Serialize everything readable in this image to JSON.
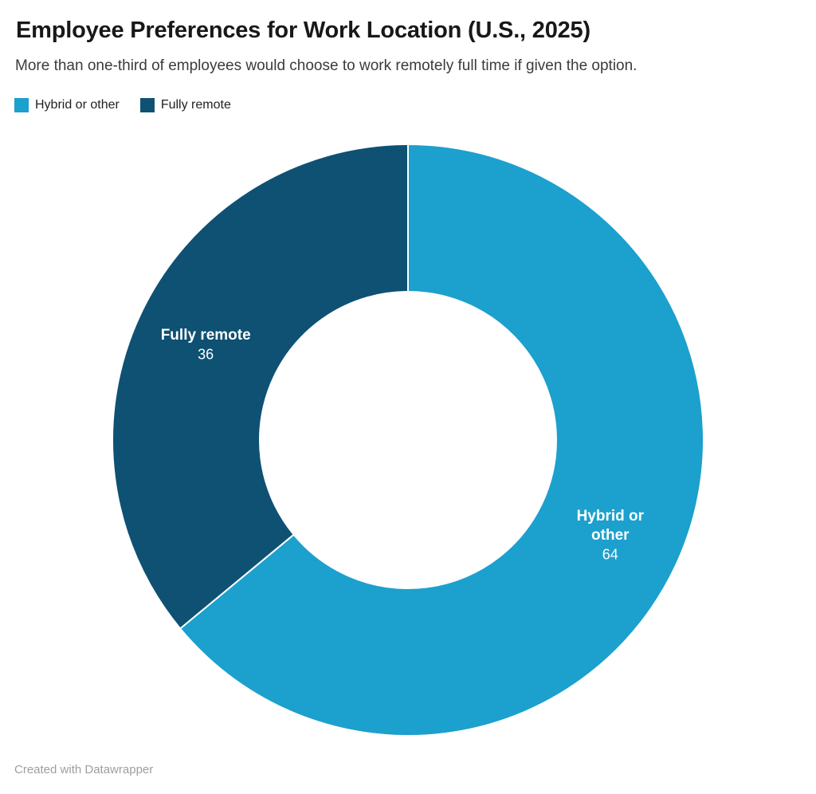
{
  "header": {
    "title": "Employee Preferences for Work Location (U.S., 2025)",
    "subtitle": "More than one-third of employees would choose to work remotely full time if given the option."
  },
  "legend": {
    "items": [
      {
        "label": "Hybrid or other",
        "color": "#1ca0cd"
      },
      {
        "label": "Fully remote",
        "color": "#0e5173"
      }
    ]
  },
  "chart_data": {
    "type": "pie",
    "subtype": "donut",
    "title": "Employee Preferences for Work Location (U.S., 2025)",
    "subtitle": "More than one-third of employees would choose to work remotely full time if given the option.",
    "legend_position": "top-left",
    "direction": "clockwise",
    "start_angle_deg": 0,
    "inner_radius_ratio": 0.5,
    "segments": [
      {
        "label": "Hybrid or other",
        "value": 64,
        "color": "#1ca0cd",
        "label_lines": [
          "Hybrid or",
          "other"
        ]
      },
      {
        "label": "Fully remote",
        "value": 36,
        "color": "#0e5173",
        "label_lines": [
          "Fully remote"
        ]
      }
    ]
  },
  "footer": {
    "credit": "Created with Datawrapper"
  }
}
